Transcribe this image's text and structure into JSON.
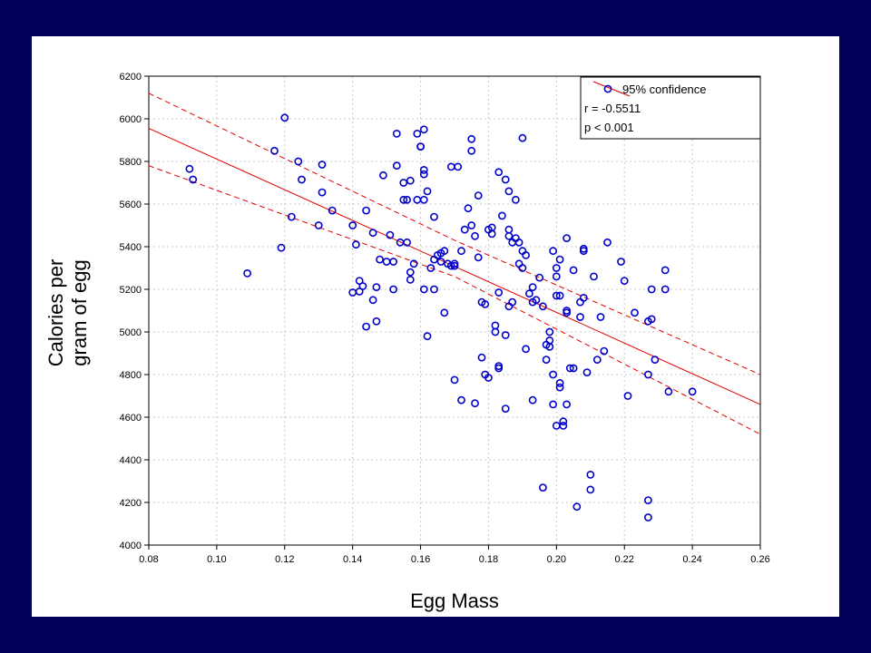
{
  "colors": {
    "background": "#00005a",
    "panel": "#ffffff",
    "points": "#0000cc",
    "fit_line": "#e00000"
  },
  "chart_data": {
    "type": "scatter",
    "xlabel": "Egg Mass",
    "ylabel_lines": [
      "Calories per",
      "gram of egg"
    ],
    "xlim": [
      0.08,
      0.26
    ],
    "ylim": [
      4000,
      6200
    ],
    "x_ticks": [
      "0.08",
      "0.10",
      "0.12",
      "0.14",
      "0.16",
      "0.18",
      "0.20",
      "0.22",
      "0.24",
      "0.26"
    ],
    "y_ticks": [
      "4000",
      "4200",
      "4400",
      "4600",
      "4800",
      "5000",
      "5200",
      "5400",
      "5600",
      "5800",
      "6000",
      "6200"
    ],
    "grid": true,
    "legend": {
      "placement": "top-right",
      "entries": [
        "95% confidence",
        "r = -0.5511",
        "p < 0.001"
      ]
    },
    "fit_line": {
      "x": [
        0.08,
        0.26
      ],
      "y": [
        5955,
        4660
      ]
    },
    "confidence_upper": {
      "x": [
        0.08,
        0.17,
        0.26
      ],
      "y": [
        6120,
        5430,
        4800
      ]
    },
    "confidence_lower": {
      "x": [
        0.08,
        0.17,
        0.26
      ],
      "y": [
        5780,
        5260,
        4520
      ]
    },
    "points": [
      [
        0.092,
        5765
      ],
      [
        0.093,
        5715
      ],
      [
        0.109,
        5275
      ],
      [
        0.117,
        5850
      ],
      [
        0.119,
        5395
      ],
      [
        0.12,
        6005
      ],
      [
        0.122,
        5540
      ],
      [
        0.124,
        5800
      ],
      [
        0.125,
        5715
      ],
      [
        0.13,
        5500
      ],
      [
        0.131,
        5655
      ],
      [
        0.131,
        5785
      ],
      [
        0.134,
        5570
      ],
      [
        0.14,
        5185
      ],
      [
        0.14,
        5500
      ],
      [
        0.141,
        5410
      ],
      [
        0.142,
        5240
      ],
      [
        0.142,
        5190
      ],
      [
        0.143,
        5215
      ],
      [
        0.144,
        5570
      ],
      [
        0.144,
        5025
      ],
      [
        0.146,
        5465
      ],
      [
        0.146,
        5150
      ],
      [
        0.147,
        5210
      ],
      [
        0.147,
        5050
      ],
      [
        0.148,
        5340
      ],
      [
        0.149,
        5735
      ],
      [
        0.15,
        5330
      ],
      [
        0.151,
        5455
      ],
      [
        0.152,
        5200
      ],
      [
        0.152,
        5330
      ],
      [
        0.153,
        5930
      ],
      [
        0.153,
        5780
      ],
      [
        0.154,
        5420
      ],
      [
        0.155,
        5620
      ],
      [
        0.155,
        5700
      ],
      [
        0.156,
        5420
      ],
      [
        0.156,
        5620
      ],
      [
        0.157,
        5710
      ],
      [
        0.157,
        5280
      ],
      [
        0.157,
        5245
      ],
      [
        0.158,
        5320
      ],
      [
        0.159,
        5620
      ],
      [
        0.159,
        5930
      ],
      [
        0.16,
        5870
      ],
      [
        0.16,
        5870
      ],
      [
        0.161,
        5950
      ],
      [
        0.161,
        5760
      ],
      [
        0.161,
        5740
      ],
      [
        0.161,
        5620
      ],
      [
        0.161,
        5200
      ],
      [
        0.162,
        5660
      ],
      [
        0.162,
        4980
      ],
      [
        0.163,
        5300
      ],
      [
        0.164,
        5540
      ],
      [
        0.164,
        5340
      ],
      [
        0.164,
        5200
      ],
      [
        0.165,
        5360
      ],
      [
        0.166,
        5370
      ],
      [
        0.166,
        5330
      ],
      [
        0.167,
        5380
      ],
      [
        0.167,
        5090
      ],
      [
        0.168,
        5320
      ],
      [
        0.169,
        5310
      ],
      [
        0.17,
        5310
      ],
      [
        0.17,
        5320
      ],
      [
        0.169,
        5775
      ],
      [
        0.17,
        4775
      ],
      [
        0.171,
        5775
      ],
      [
        0.172,
        4680
      ],
      [
        0.172,
        5380
      ],
      [
        0.173,
        5480
      ],
      [
        0.174,
        5580
      ],
      [
        0.175,
        5500
      ],
      [
        0.175,
        5850
      ],
      [
        0.175,
        5905
      ],
      [
        0.176,
        5450
      ],
      [
        0.176,
        4665
      ],
      [
        0.177,
        5640
      ],
      [
        0.177,
        5350
      ],
      [
        0.178,
        4880
      ],
      [
        0.178,
        5140
      ],
      [
        0.179,
        5130
      ],
      [
        0.179,
        4800
      ],
      [
        0.18,
        4785
      ],
      [
        0.18,
        5480
      ],
      [
        0.181,
        5490
      ],
      [
        0.181,
        5460
      ],
      [
        0.182,
        5030
      ],
      [
        0.182,
        5000
      ],
      [
        0.183,
        4840
      ],
      [
        0.183,
        4830
      ],
      [
        0.183,
        5185
      ],
      [
        0.183,
        5750
      ],
      [
        0.184,
        5545
      ],
      [
        0.185,
        5715
      ],
      [
        0.185,
        4985
      ],
      [
        0.185,
        4640
      ],
      [
        0.186,
        5120
      ],
      [
        0.186,
        5660
      ],
      [
        0.186,
        5450
      ],
      [
        0.186,
        5480
      ],
      [
        0.187,
        5420
      ],
      [
        0.187,
        5140
      ],
      [
        0.188,
        5440
      ],
      [
        0.188,
        5620
      ],
      [
        0.189,
        5320
      ],
      [
        0.189,
        5420
      ],
      [
        0.19,
        5300
      ],
      [
        0.19,
        5380
      ],
      [
        0.19,
        5910
      ],
      [
        0.191,
        5360
      ],
      [
        0.191,
        4920
      ],
      [
        0.192,
        5180
      ],
      [
        0.193,
        5140
      ],
      [
        0.193,
        4680
      ],
      [
        0.193,
        5210
      ],
      [
        0.194,
        5150
      ],
      [
        0.195,
        5255
      ],
      [
        0.196,
        4270
      ],
      [
        0.196,
        5120
      ],
      [
        0.197,
        4870
      ],
      [
        0.197,
        4940
      ],
      [
        0.198,
        4960
      ],
      [
        0.198,
        4930
      ],
      [
        0.198,
        5000
      ],
      [
        0.199,
        5380
      ],
      [
        0.199,
        4800
      ],
      [
        0.199,
        4660
      ],
      [
        0.2,
        4560
      ],
      [
        0.2,
        5170
      ],
      [
        0.2,
        5260
      ],
      [
        0.2,
        5300
      ],
      [
        0.201,
        5340
      ],
      [
        0.201,
        4760
      ],
      [
        0.201,
        4740
      ],
      [
        0.201,
        5170
      ],
      [
        0.202,
        4580
      ],
      [
        0.202,
        4560
      ],
      [
        0.203,
        5440
      ],
      [
        0.203,
        5100
      ],
      [
        0.203,
        5090
      ],
      [
        0.203,
        4660
      ],
      [
        0.204,
        4830
      ],
      [
        0.205,
        5290
      ],
      [
        0.205,
        4830
      ],
      [
        0.206,
        4180
      ],
      [
        0.207,
        5140
      ],
      [
        0.207,
        5070
      ],
      [
        0.208,
        5380
      ],
      [
        0.208,
        5390
      ],
      [
        0.208,
        5160
      ],
      [
        0.209,
        4810
      ],
      [
        0.21,
        4330
      ],
      [
        0.21,
        4260
      ],
      [
        0.211,
        5260
      ],
      [
        0.212,
        4870
      ],
      [
        0.213,
        5070
      ],
      [
        0.214,
        4910
      ],
      [
        0.215,
        5420
      ],
      [
        0.219,
        5330
      ],
      [
        0.22,
        5240
      ],
      [
        0.221,
        4700
      ],
      [
        0.223,
        5090
      ],
      [
        0.227,
        5050
      ],
      [
        0.227,
        4800
      ],
      [
        0.227,
        4210
      ],
      [
        0.227,
        4130
      ],
      [
        0.228,
        5060
      ],
      [
        0.228,
        5200
      ],
      [
        0.229,
        4870
      ],
      [
        0.232,
        5290
      ],
      [
        0.232,
        5200
      ],
      [
        0.233,
        4720
      ],
      [
        0.24,
        4720
      ]
    ]
  }
}
